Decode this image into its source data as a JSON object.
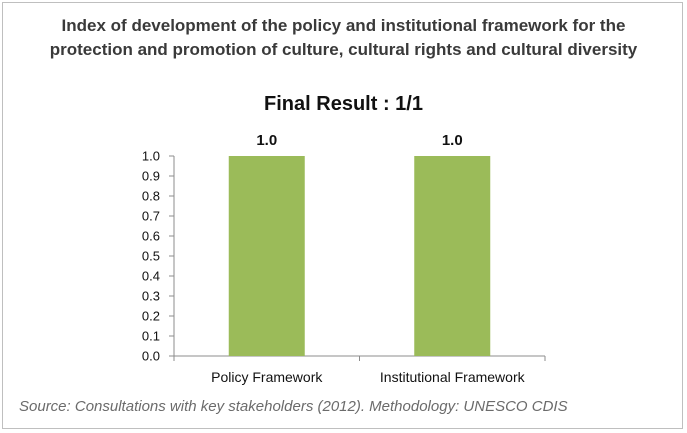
{
  "header": {
    "title_line1": "Index of development of the policy and institutional framework for the",
    "title_line2": "protection and promotion of culture, cultural rights and cultural diversity"
  },
  "footer": {
    "source": "Source: Consultations with key stakeholders (2012). Methodology: UNESCO CDIS"
  },
  "colors": {
    "bar": "#9bbb59",
    "axis": "#8c8c8c"
  },
  "chart_data": {
    "type": "bar",
    "title": "Final Result : 1/1",
    "xlabel": "",
    "ylabel": "",
    "categories": [
      "Policy Framework",
      "Institutional Framework"
    ],
    "values": [
      1.0,
      1.0
    ],
    "data_labels": [
      "1.0",
      "1.0"
    ],
    "ylim": [
      0,
      1.0
    ],
    "yticks": [
      "0.0",
      "0.1",
      "0.2",
      "0.3",
      "0.4",
      "0.5",
      "0.6",
      "0.7",
      "0.8",
      "0.9",
      "1.0"
    ],
    "grid": false,
    "legend": "none"
  }
}
